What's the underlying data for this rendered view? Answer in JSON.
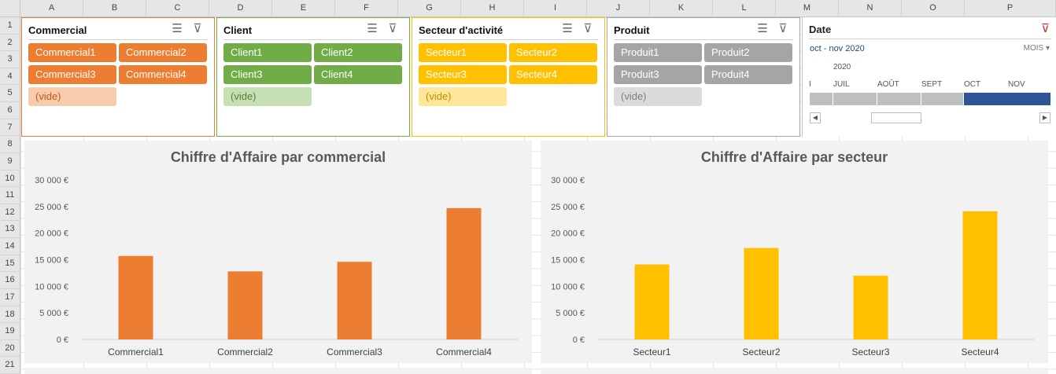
{
  "columns": [
    "A",
    "B",
    "C",
    "D",
    "E",
    "F",
    "G",
    "H",
    "I",
    "J",
    "K",
    "L",
    "M",
    "N",
    "O",
    "P"
  ],
  "rows": [
    "1",
    "2",
    "3",
    "4",
    "5",
    "6",
    "7",
    "8",
    "9",
    "10",
    "11",
    "12",
    "13",
    "14",
    "15",
    "16",
    "17",
    "18",
    "19",
    "20",
    "21"
  ],
  "slicers": [
    {
      "title": "Commercial",
      "accent": "#ed7d31",
      "items": [
        "Commercial1",
        "Commercial2",
        "Commercial3",
        "Commercial4"
      ],
      "empty": "(vide)",
      "on_color": "#ed7d31",
      "on_text": "#ffffff",
      "off_color": "#f8cbad",
      "off_text": "#c55a11"
    },
    {
      "title": "Client",
      "accent": "#70ad47",
      "items": [
        "Client1",
        "Client2",
        "Client3",
        "Client4"
      ],
      "empty": "(vide)",
      "on_color": "#70ad47",
      "on_text": "#ffffff",
      "off_color": "#c6e0b4",
      "off_text": "#548235"
    },
    {
      "title": "Secteur d'activité",
      "accent": "#ffc000",
      "items": [
        "Secteur1",
        "Secteur2",
        "Secteur3",
        "Secteur4"
      ],
      "empty": "(vide)",
      "on_color": "#ffc000",
      "on_text": "#ffffff",
      "off_color": "#ffe699",
      "off_text": "#bf8f00"
    },
    {
      "title": "Produit",
      "accent": "#a5a5a5",
      "items": [
        "Produit1",
        "Produit2",
        "Produit3",
        "Produit4"
      ],
      "empty": "(vide)",
      "on_color": "#a5a5a5",
      "on_text": "#ffffff",
      "off_color": "#dbdbdb",
      "off_text": "#7f7f7f"
    }
  ],
  "timeline": {
    "title": "Date",
    "range": "oct - nov 2020",
    "level": "MOIS",
    "year": "2020",
    "months": [
      "I",
      "JUIL",
      "AOÛT",
      "SEPT",
      "OCT",
      "NOV"
    ],
    "selected_months": [
      "OCT",
      "NOV"
    ],
    "selected_color": "#2f5597"
  },
  "chart_data": [
    {
      "type": "bar",
      "title": "Chiffre d'Affaire par commercial",
      "categories": [
        "Commercial1",
        "Commercial2",
        "Commercial3",
        "Commercial4"
      ],
      "values": [
        15700,
        12800,
        14600,
        24700
      ],
      "yticks": [
        "0 €",
        "5 000 €",
        "10 000 €",
        "15 000 €",
        "20 000 €",
        "25 000 €",
        "30 000 €"
      ],
      "ylim": [
        0,
        30000
      ],
      "color": "#ed7d31",
      "grid": false,
      "legend": "none"
    },
    {
      "type": "bar",
      "title": "Chiffre d'Affaire par secteur",
      "categories": [
        "Secteur1",
        "Secteur2",
        "Secteur3",
        "Secteur4"
      ],
      "values": [
        14100,
        17200,
        12000,
        24100
      ],
      "yticks": [
        "0 €",
        "5 000 €",
        "10 000 €",
        "15 000 €",
        "20 000 €",
        "25 000 €",
        "30 000 €"
      ],
      "ylim": [
        0,
        30000
      ],
      "color": "#ffc000",
      "grid": false,
      "legend": "none"
    }
  ]
}
